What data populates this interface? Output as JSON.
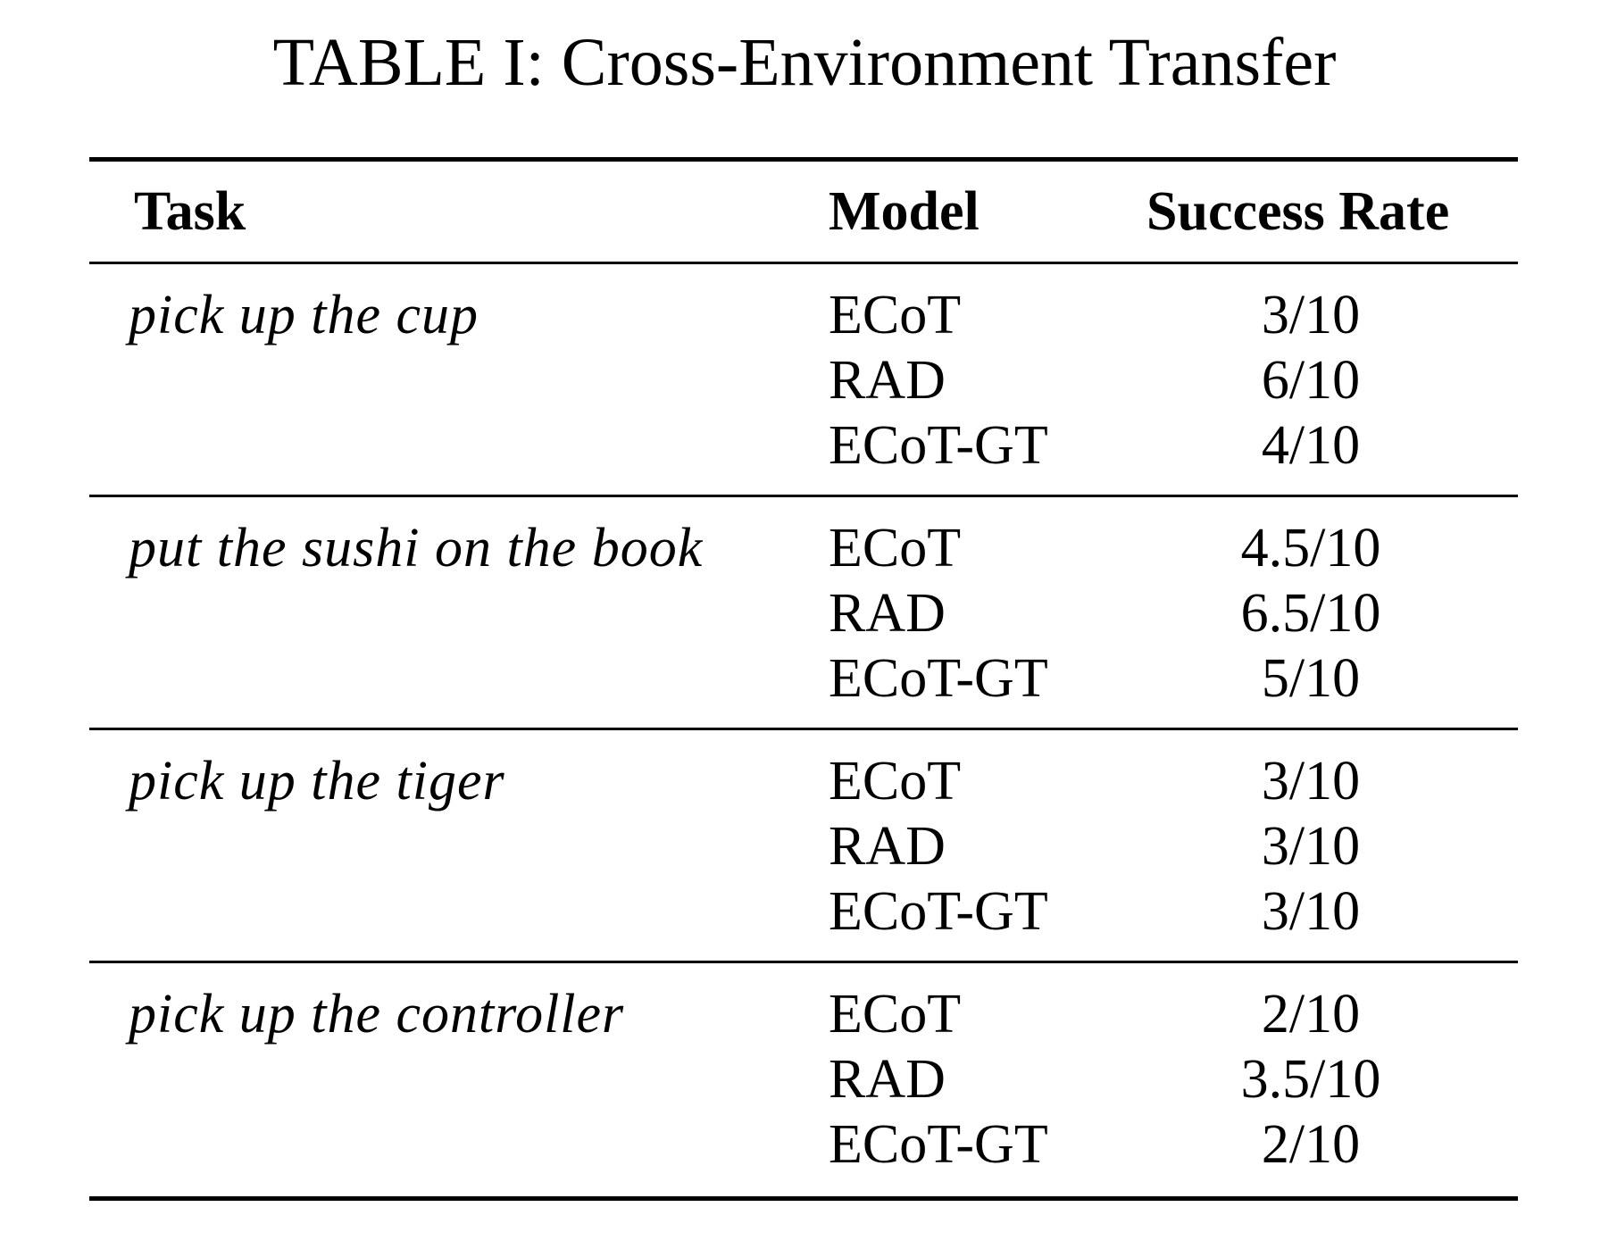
{
  "caption": "TABLE I: Cross-Environment Transfer",
  "table": {
    "headers": {
      "task": "Task",
      "model": "Model",
      "success_rate": "Success Rate"
    },
    "groups": [
      {
        "task": "pick up the cup",
        "rows": [
          {
            "model": "ECoT",
            "success_rate": "3/10"
          },
          {
            "model": "RAD",
            "success_rate": "6/10"
          },
          {
            "model": "ECoT-GT",
            "success_rate": "4/10"
          }
        ]
      },
      {
        "task": "put the sushi on the book",
        "rows": [
          {
            "model": "ECoT",
            "success_rate": "4.5/10"
          },
          {
            "model": "RAD",
            "success_rate": "6.5/10"
          },
          {
            "model": "ECoT-GT",
            "success_rate": "5/10"
          }
        ]
      },
      {
        "task": "pick up the tiger",
        "rows": [
          {
            "model": "ECoT",
            "success_rate": "3/10"
          },
          {
            "model": "RAD",
            "success_rate": "3/10"
          },
          {
            "model": "ECoT-GT",
            "success_rate": "3/10"
          }
        ]
      },
      {
        "task": "pick up the controller",
        "rows": [
          {
            "model": "ECoT",
            "success_rate": "2/10"
          },
          {
            "model": "RAD",
            "success_rate": "3.5/10"
          },
          {
            "model": "ECoT-GT",
            "success_rate": "2/10"
          }
        ]
      }
    ]
  }
}
